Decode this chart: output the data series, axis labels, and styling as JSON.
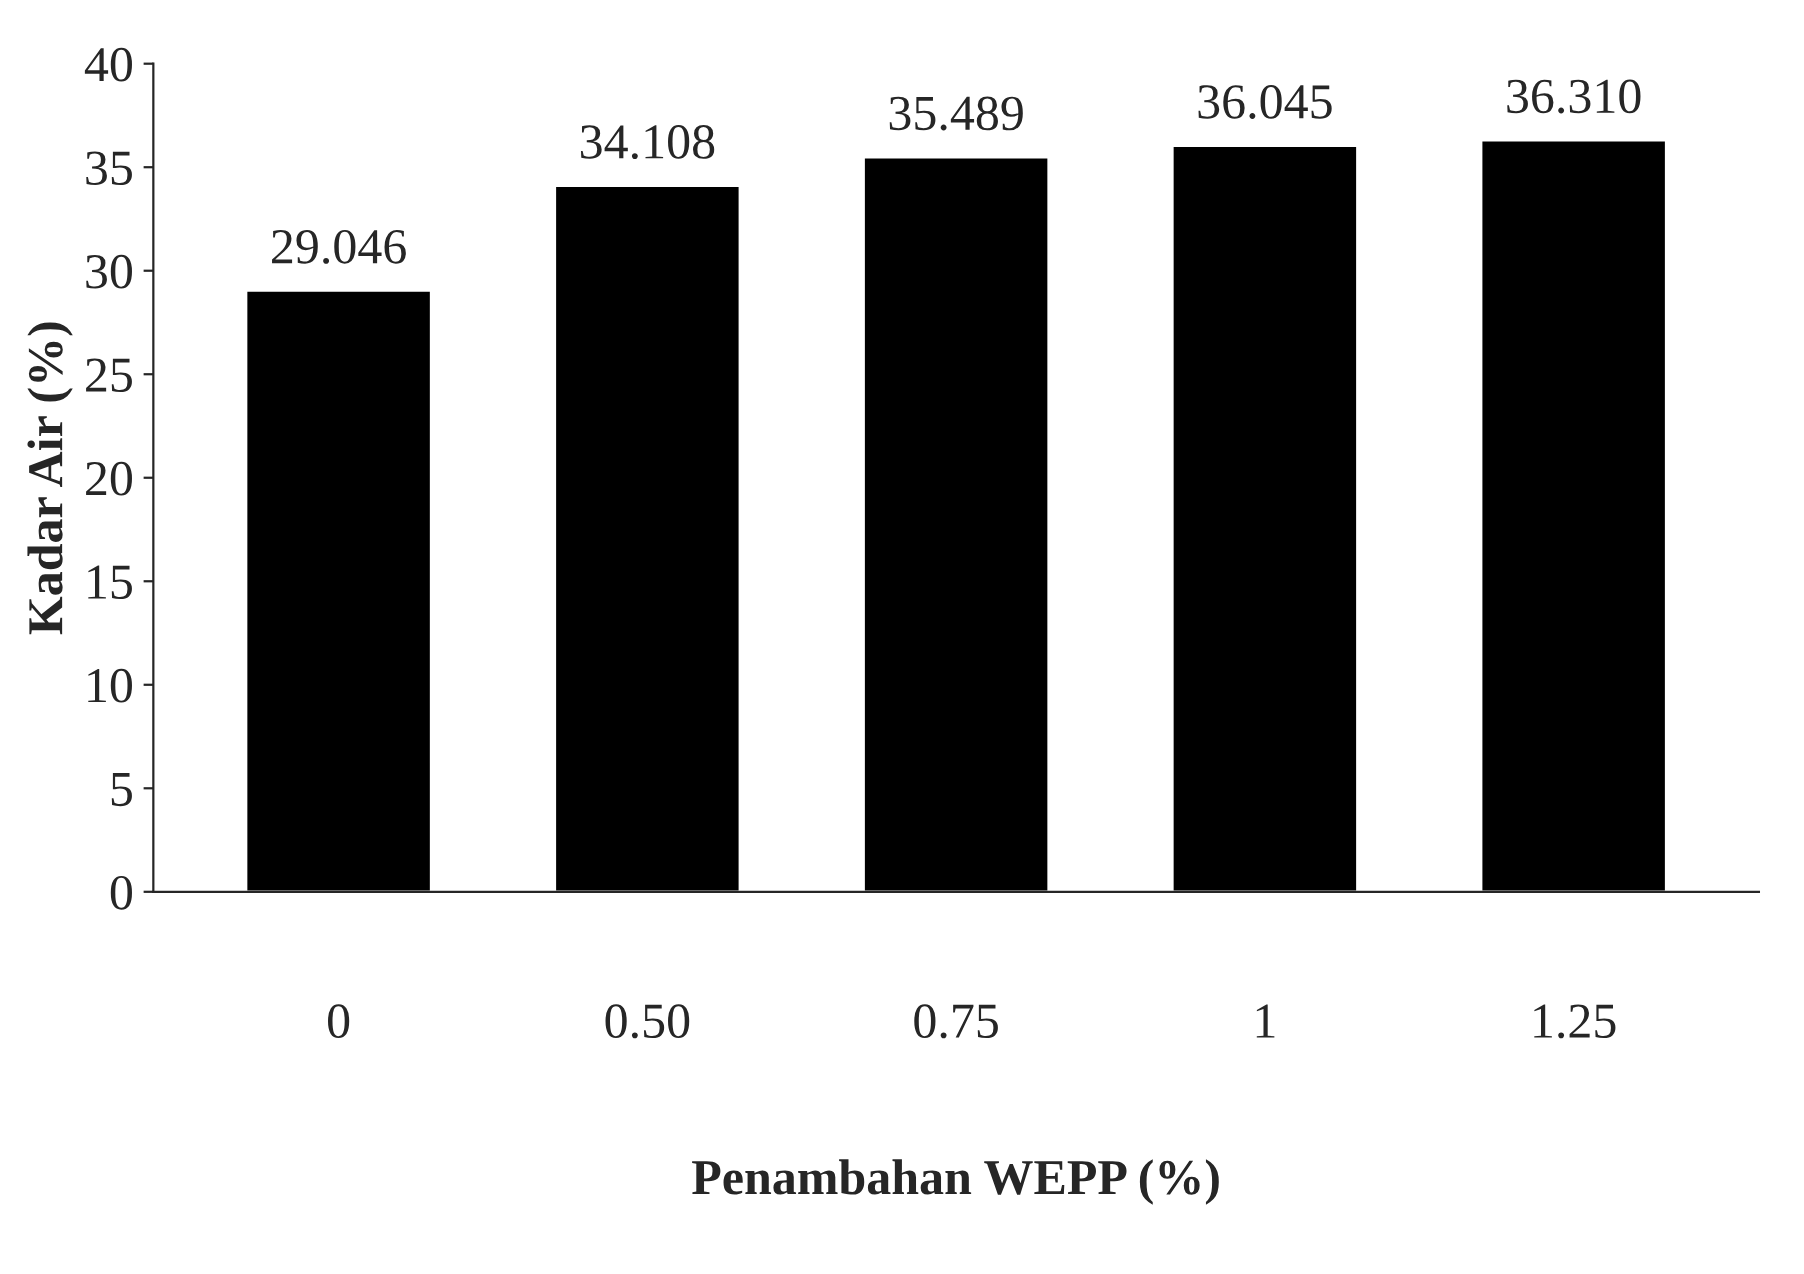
{
  "chart_data": {
    "type": "bar",
    "xlabel": "Penambahan WEPP (%)",
    "ylabel": "Kadar Air (%)",
    "categories": [
      "0",
      "0.50",
      "0.75",
      "1",
      "1.25"
    ],
    "values": [
      29.046,
      34.108,
      35.489,
      36.045,
      36.31
    ],
    "value_labels": [
      "29.046",
      "34.108",
      "35.489",
      "36.045",
      "36.310"
    ],
    "color": "#000000",
    "ylim": [
      0,
      40
    ],
    "yticks": [
      0,
      5,
      10,
      15,
      20,
      25,
      30,
      35,
      40
    ],
    "grid": false,
    "legend": false
  }
}
